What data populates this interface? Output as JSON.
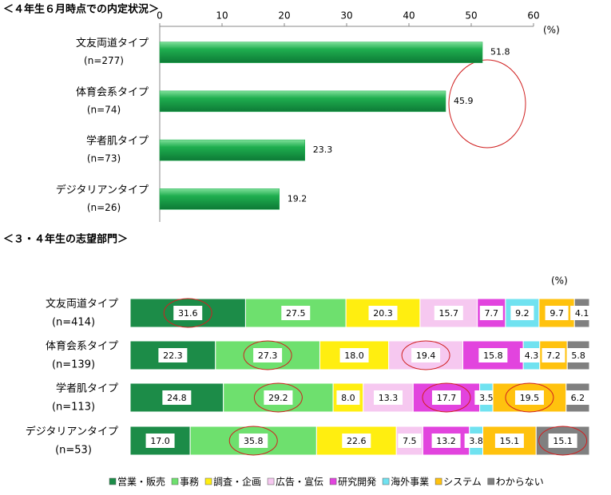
{
  "chart_data": [
    {
      "type": "bar",
      "title": "＜４年生６月時点での内定状況＞",
      "unit_label": "(%)",
      "categories": [
        "文友両道タイプ",
        "体育会系タイプ",
        "学者肌タイプ",
        "デジタリアンタイプ"
      ],
      "sample_sizes": [
        "(n=277)",
        "(n=74)",
        "(n=73)",
        "(n=26)"
      ],
      "values": [
        51.8,
        45.9,
        23.3,
        19.2
      ],
      "color": "#1fae4f",
      "xlim": [
        0,
        60
      ],
      "xticks": [
        0,
        10,
        20,
        30,
        40,
        50,
        60
      ]
    },
    {
      "type": "stacked_bar",
      "title": "＜３・４年生の志望部門＞",
      "unit_label": "(%)",
      "categories": [
        "文友両道タイプ",
        "体育会系タイプ",
        "学者肌タイプ",
        "デジタリアンタイプ"
      ],
      "sample_sizes": [
        "(n=414)",
        "(n=139)",
        "(n=113)",
        "(n=53)"
      ],
      "series": [
        {
          "name": "営業・販売",
          "color": "#1c8c48",
          "values": [
            31.6,
            22.3,
            24.8,
            17.0
          ],
          "value_labels": [
            "31.6",
            "22.3",
            "24.8",
            "17.0"
          ]
        },
        {
          "name": "事務",
          "color": "#6ee06e",
          "values": [
            27.5,
            27.3,
            29.2,
            35.8
          ],
          "value_labels": [
            "27.5",
            "27.3",
            "29.2",
            "35.8"
          ]
        },
        {
          "name": "調査・企画",
          "color": "#ffee10",
          "values": [
            20.3,
            18.0,
            8.0,
            22.6
          ],
          "value_labels": [
            "20.3",
            "18.0",
            "8.0",
            "22.6"
          ]
        },
        {
          "name": "広告・宣伝",
          "color": "#f6c8f0",
          "values": [
            15.7,
            19.4,
            13.3,
            7.5
          ],
          "value_labels": [
            "15.7",
            "19.4",
            "13.3",
            "7.5"
          ]
        },
        {
          "name": "研究開発",
          "color": "#e244de",
          "values": [
            7.7,
            15.8,
            17.7,
            13.2
          ],
          "value_labels": [
            "7.7",
            "15.8",
            "17.7",
            "13.2"
          ]
        },
        {
          "name": "海外事業",
          "color": "#70e2f0",
          "values": [
            9.2,
            4.3,
            3.5,
            3.8
          ],
          "value_labels": [
            "9.2",
            "4.3",
            "3.5",
            "3.8"
          ]
        },
        {
          "name": "システム",
          "color": "#ffc20e",
          "values": [
            9.7,
            7.2,
            19.5,
            15.1
          ],
          "value_labels": [
            "9.7",
            "7.2",
            "19.5",
            "15.1"
          ]
        },
        {
          "name": "わからない",
          "color": "#808080",
          "values": [
            4.1,
            5.8,
            6.2,
            15.1
          ],
          "value_labels": [
            "4.1",
            "5.8",
            "6.2",
            "15.1"
          ]
        }
      ]
    }
  ]
}
